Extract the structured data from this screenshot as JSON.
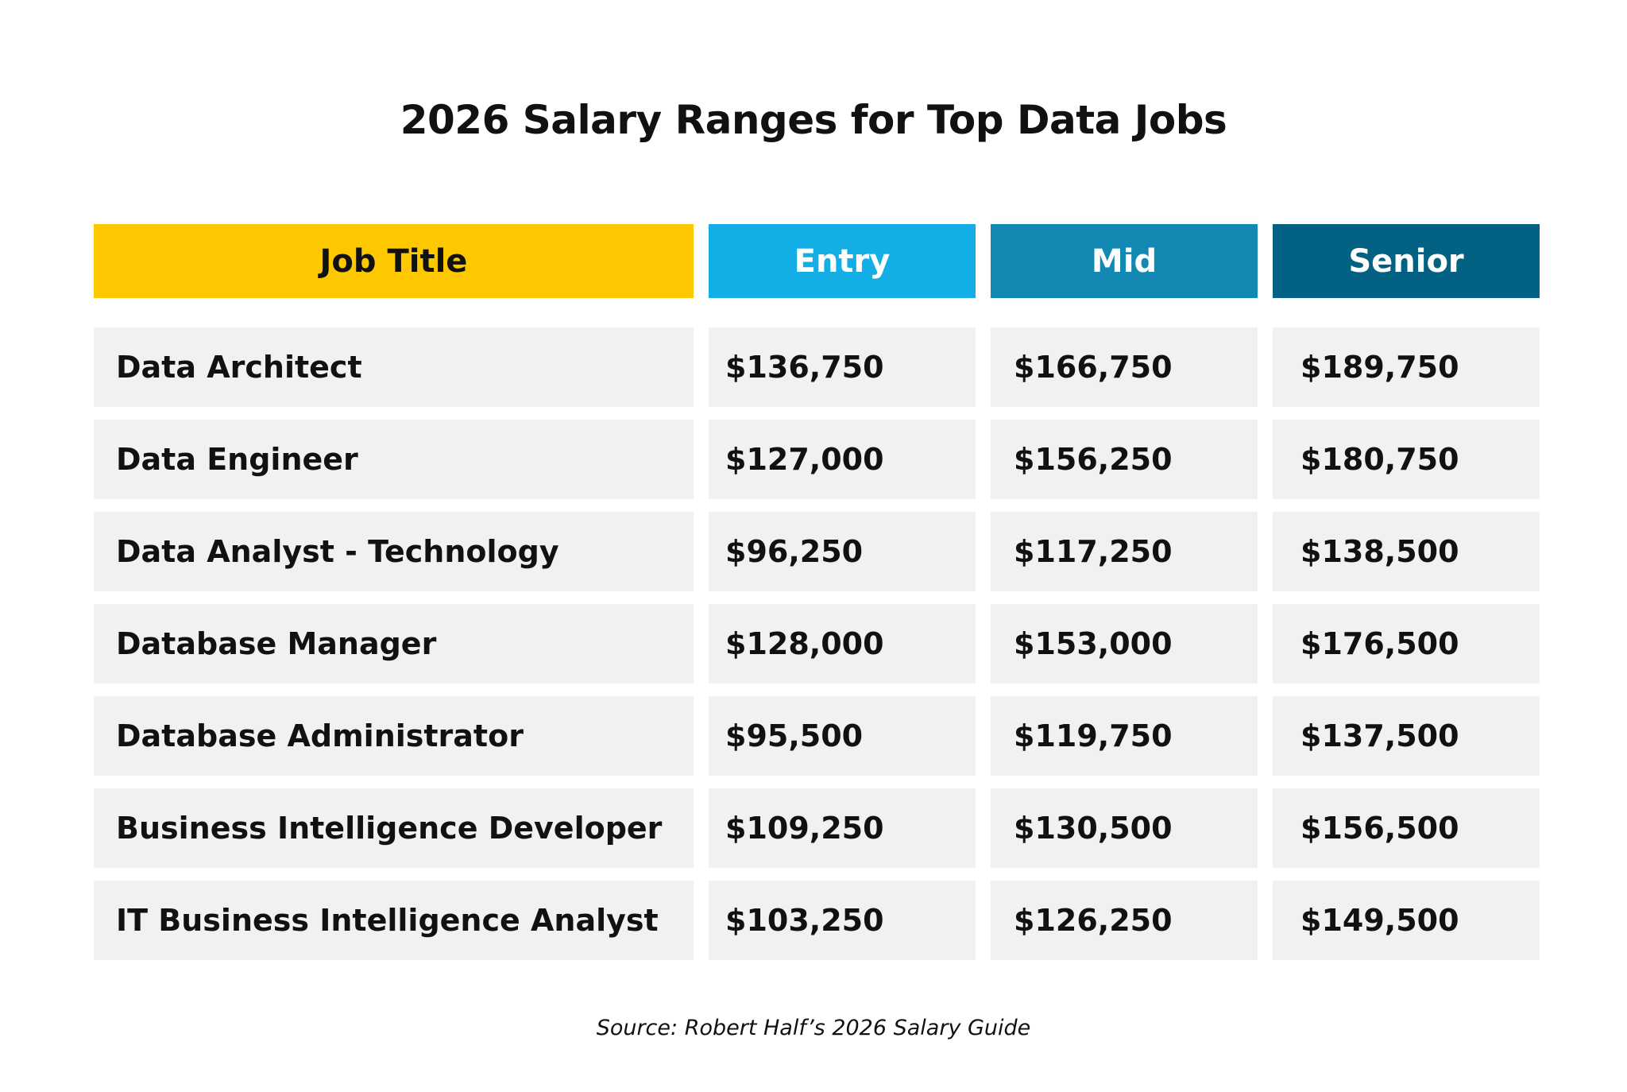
{
  "title": "2026 Salary Ranges for Top Data Jobs",
  "headers": [
    "Job Title",
    "Entry",
    "Mid",
    "Senior"
  ],
  "colors": {
    "job_title": "#FDC800",
    "entry": "#14AEE6",
    "mid": "#1388B2",
    "senior": "#036284",
    "row": "#F1F1F1"
  },
  "rows": [
    {
      "job": "Data Architect",
      "entry": "$136,750",
      "mid": "$166,750",
      "senior": "$189,750"
    },
    {
      "job": "Data Engineer",
      "entry": "$127,000",
      "mid": "$156,250",
      "senior": "$180,750"
    },
    {
      "job": "Data Analyst - Technology",
      "entry": "$96,250",
      "mid": "$117,250",
      "senior": "$138,500"
    },
    {
      "job": "Database Manager",
      "entry": "$128,000",
      "mid": "$153,000",
      "senior": "$176,500"
    },
    {
      "job": "Database Administrator",
      "entry": "$95,500",
      "mid": "$119,750",
      "senior": "$137,500"
    },
    {
      "job": "Business Intelligence Developer",
      "entry": "$109,250",
      "mid": "$130,500",
      "senior": "$156,500"
    },
    {
      "job": "IT Business Intelligence Analyst",
      "entry": "$103,250",
      "mid": "$126,250",
      "senior": "$149,500"
    }
  ],
  "source": "Source: Robert Half’s 2026 Salary Guide"
}
